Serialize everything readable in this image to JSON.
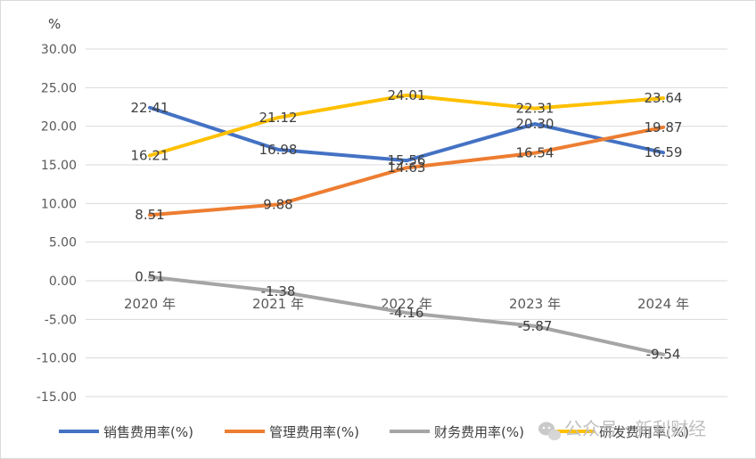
{
  "chart_data": {
    "type": "line",
    "unit_label": "%",
    "categories": [
      "2020 年",
      "2021 年",
      "2022 年",
      "2023 年",
      "2024 年"
    ],
    "y_ticks": [
      "30.00",
      "25.00",
      "20.00",
      "15.00",
      "10.00",
      "5.00",
      "0.00",
      "-5.00",
      "-10.00",
      "-15.00"
    ],
    "ylim": [
      -15,
      30
    ],
    "grid": true,
    "legend_position": "bottom",
    "series": [
      {
        "name": "销售费用率(%)",
        "color": "#4472c4",
        "values": [
          22.41,
          16.98,
          15.56,
          20.3,
          16.59
        ],
        "labels": [
          "22.41",
          "16.98",
          "15.56",
          "20.30",
          "16.59"
        ]
      },
      {
        "name": "管理费用率(%)",
        "color": "#ed7d31",
        "values": [
          8.51,
          9.88,
          14.63,
          16.54,
          19.87
        ],
        "labels": [
          "8.51",
          "9.88",
          "14.63",
          "16.54",
          "19.87"
        ]
      },
      {
        "name": "财务费用率(%)",
        "color": "#a5a5a5",
        "values": [
          0.51,
          -1.38,
          -4.16,
          -5.87,
          -9.54
        ],
        "labels": [
          "0.51",
          "-1.38",
          "-4.16",
          "-5.87",
          "-9.54"
        ]
      },
      {
        "name": "研发费用率(%)",
        "color": "#ffc000",
        "values": [
          16.21,
          21.12,
          24.01,
          22.31,
          23.64
        ],
        "labels": [
          "16.21",
          "21.12",
          "24.01",
          "22.31",
          "23.64"
        ]
      }
    ]
  },
  "watermark": {
    "icon": "wechat-icon",
    "text": "公众号 · 新利财经"
  }
}
